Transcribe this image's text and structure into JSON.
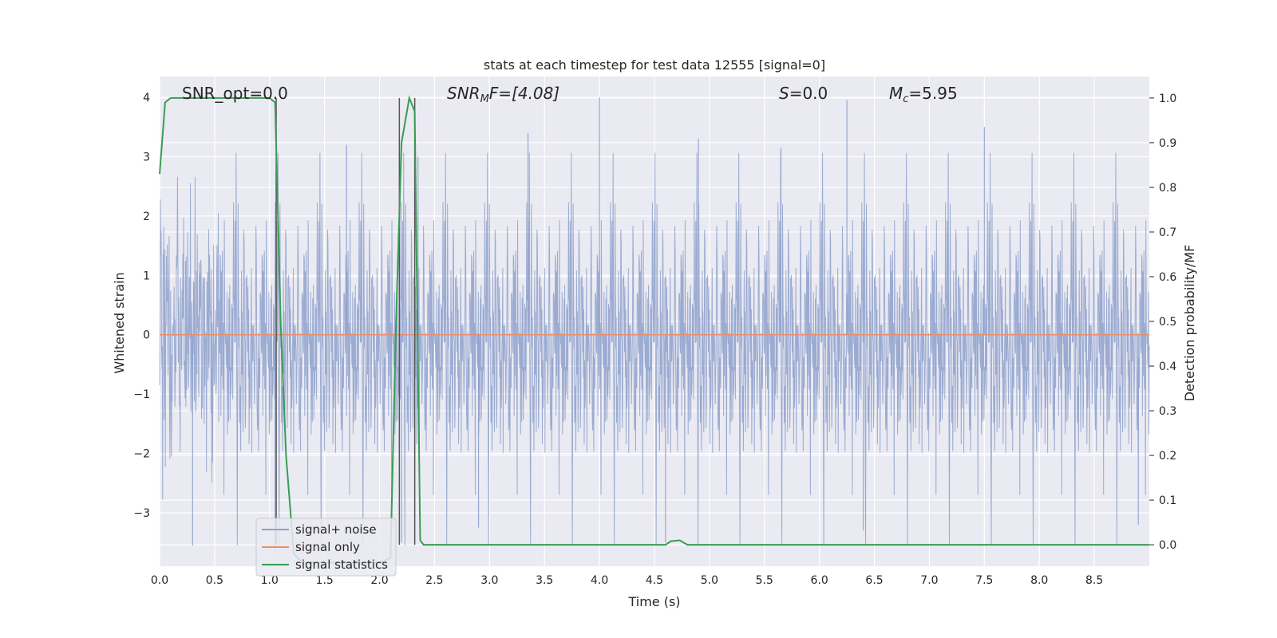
{
  "chart_data": {
    "type": "line",
    "title": "stats at each timestep for test data 12555 [signal=0]",
    "xlabel": "Time (s)",
    "ylabel": "Whitened strain",
    "y2label": "Detection probability/MF",
    "xlim": [
      0,
      9.0
    ],
    "ylim": [
      -3.9,
      4.35
    ],
    "y2lim": [
      -0.048,
      1.048
    ],
    "xticks": [
      0.0,
      0.5,
      1.0,
      1.5,
      2.0,
      2.5,
      3.0,
      3.5,
      4.0,
      4.5,
      5.0,
      5.5,
      6.0,
      6.5,
      7.0,
      7.5,
      8.0,
      8.5
    ],
    "xtick_labels": [
      "0.0",
      "0.5",
      "1.0",
      "1.5",
      "2.0",
      "2.5",
      "3.0",
      "3.5",
      "4.0",
      "4.5",
      "5.0",
      "5.5",
      "6.0",
      "6.5",
      "7.0",
      "7.5",
      "8.0",
      "8.5"
    ],
    "yticks": [
      -3,
      -2,
      -1,
      0,
      1,
      2,
      3,
      4
    ],
    "ytick_labels": [
      "−3",
      "−2",
      "−1",
      "0",
      "1",
      "2",
      "3",
      "4"
    ],
    "y2ticks": [
      0.0,
      0.1,
      0.2,
      0.3,
      0.4,
      0.5,
      0.6,
      0.7,
      0.8,
      0.9,
      1.0
    ],
    "y2tick_labels": [
      "0.0",
      "0.1",
      "0.2",
      "0.3",
      "0.4",
      "0.5",
      "0.6",
      "0.7",
      "0.8",
      "0.9",
      "1.0"
    ],
    "grid": true,
    "legend_position": "lower-left",
    "series": [
      {
        "name": "signal+ noise",
        "color": "#8da0cb",
        "axis": "left",
        "description": "dense noise trace",
        "envelope_typical": [
          -2.2,
          2.2
        ],
        "notable_peaks": [
          {
            "x": 4.0,
            "y": 4.0
          },
          {
            "x": 6.25,
            "y": 3.95
          },
          {
            "x": 7.5,
            "y": 3.5
          },
          {
            "x": 5.65,
            "y": 3.15
          },
          {
            "x": 4.9,
            "y": 3.3
          },
          {
            "x": 3.35,
            "y": 3.4
          },
          {
            "x": 2.35,
            "y": 3.0
          },
          {
            "x": 1.7,
            "y": 3.2
          },
          {
            "x": 0.3,
            "y": -3.55
          },
          {
            "x": 1.05,
            "y": -3.65
          },
          {
            "x": 2.2,
            "y": -3.5
          },
          {
            "x": 4.6,
            "y": -3.5
          },
          {
            "x": 6.4,
            "y": -3.3
          },
          {
            "x": 8.9,
            "y": -3.2
          },
          {
            "x": 2.9,
            "y": -3.25
          }
        ]
      },
      {
        "name": "signal only",
        "color": "#e8906b",
        "axis": "left",
        "x": [
          0.0,
          9.0
        ],
        "y": [
          0.0,
          0.0
        ]
      },
      {
        "name": "signal statistics",
        "color": "#3a9c55",
        "axis": "right",
        "x": [
          0.0,
          0.05,
          0.1,
          0.3,
          0.6,
          0.9,
          1.0,
          1.05,
          1.1,
          1.15,
          1.22,
          1.3,
          1.4,
          1.6,
          1.8,
          2.0,
          2.1,
          2.15,
          2.2,
          2.27,
          2.32,
          2.37,
          2.4,
          2.45,
          3.0,
          4.0,
          4.6,
          4.65,
          4.73,
          4.8,
          5.0,
          6.0,
          7.0,
          8.0,
          9.0
        ],
        "y": [
          0.83,
          0.99,
          1.0,
          1.0,
          1.0,
          1.0,
          1.0,
          0.99,
          0.5,
          0.2,
          -0.02,
          -0.04,
          -0.04,
          -0.04,
          -0.04,
          -0.04,
          -0.03,
          0.5,
          0.9,
          1.0,
          0.97,
          0.01,
          0.0,
          0.0,
          0.0,
          0.0,
          0.0,
          0.008,
          0.01,
          0.0,
          0.0,
          0.0,
          0.0,
          0.0,
          0.0
        ]
      }
    ],
    "vertical_markers": [
      {
        "x": 1.06,
        "color": "#555555"
      },
      {
        "x": 2.18,
        "color": "#555555"
      },
      {
        "x": 2.32,
        "color": "#555555"
      }
    ],
    "annotations": {
      "snr_opt": "SNR_opt=0.0",
      "snr_mf_base": "SNR",
      "snr_mf_sub": "M",
      "snr_mf_rest": "F=[4.08]",
      "s_label": "S",
      "s_value": "=0.0",
      "mc_base": "M",
      "mc_sub": "c",
      "mc_value": "=5.95"
    }
  }
}
